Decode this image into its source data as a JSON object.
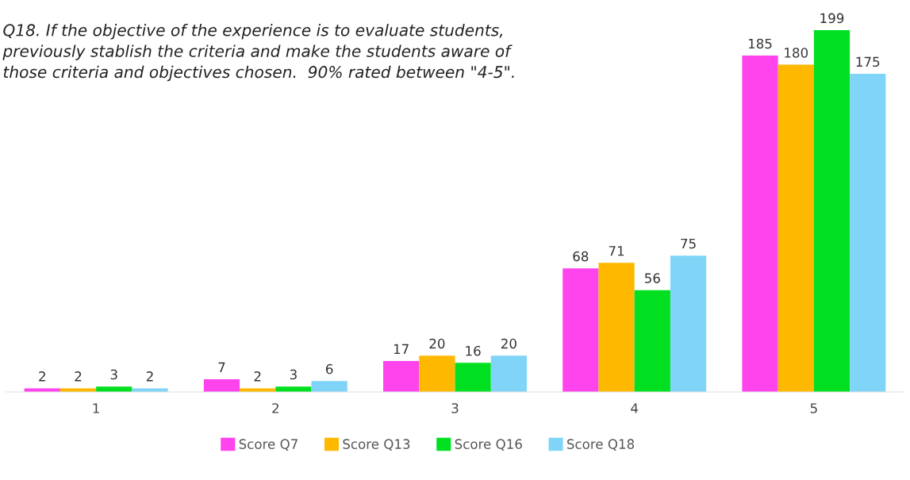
{
  "chart_data": {
    "type": "bar",
    "title": "Q18. If the objective of the experience is to evaluate students,\npreviously stablish the criteria and make the students aware of\nthose criteria and objectives chosen.  90% rated between \"4-5\".",
    "categories": [
      "1",
      "2",
      "3",
      "4",
      "5"
    ],
    "series": [
      {
        "name": "Score Q7",
        "color": "#ff44ee",
        "values": [
          2,
          7,
          17,
          68,
          185
        ]
      },
      {
        "name": "Score Q13",
        "color": "#ffb800",
        "values": [
          2,
          2,
          20,
          71,
          180
        ]
      },
      {
        "name": "Score Q16",
        "color": "#00e020",
        "values": [
          3,
          3,
          16,
          56,
          199
        ]
      },
      {
        "name": "Score Q18",
        "color": "#80d4f8",
        "values": [
          2,
          6,
          20,
          75,
          175
        ]
      }
    ],
    "data_labels": true,
    "grid": false,
    "legend": "bottom"
  }
}
